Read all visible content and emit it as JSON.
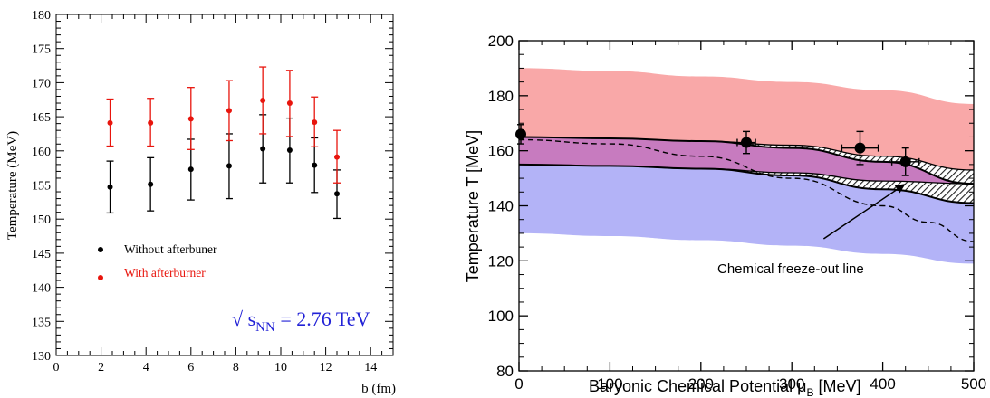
{
  "chart_data": [
    {
      "type": "scatter",
      "xlabel": "b (fm)",
      "ylabel": "Temperature (MeV)",
      "xlim": [
        0,
        15
      ],
      "ylim": [
        130,
        180
      ],
      "x_ticks": [
        "0",
        "2",
        "4",
        "6",
        "8",
        "10",
        "12",
        "14"
      ],
      "y_ticks": [
        "130",
        "135",
        "140",
        "145",
        "150",
        "155",
        "160",
        "165",
        "170",
        "175",
        "180"
      ],
      "series": [
        {
          "name": "Without afterbuner",
          "color": "#000000",
          "points": [
            {
              "x": 2.4,
              "y": 154.7,
              "ylo": 150.9,
              "yhi": 158.5
            },
            {
              "x": 4.2,
              "y": 155.1,
              "ylo": 151.2,
              "yhi": 159.0
            },
            {
              "x": 6.0,
              "y": 157.3,
              "ylo": 152.8,
              "yhi": 161.7
            },
            {
              "x": 7.7,
              "y": 157.8,
              "ylo": 153.0,
              "yhi": 162.5
            },
            {
              "x": 9.2,
              "y": 160.3,
              "ylo": 155.3,
              "yhi": 165.3
            },
            {
              "x": 10.4,
              "y": 160.1,
              "ylo": 155.3,
              "yhi": 164.8
            },
            {
              "x": 11.5,
              "y": 157.9,
              "ylo": 153.9,
              "yhi": 161.9
            },
            {
              "x": 12.5,
              "y": 153.7,
              "ylo": 150.1,
              "yhi": 157.2
            }
          ]
        },
        {
          "name": "With afterburner",
          "color": "#e8150d",
          "points": [
            {
              "x": 2.4,
              "y": 164.1,
              "ylo": 160.7,
              "yhi": 167.6
            },
            {
              "x": 4.2,
              "y": 164.1,
              "ylo": 160.7,
              "yhi": 167.7
            },
            {
              "x": 6.0,
              "y": 164.7,
              "ylo": 160.2,
              "yhi": 169.3
            },
            {
              "x": 7.7,
              "y": 165.9,
              "ylo": 161.5,
              "yhi": 170.3
            },
            {
              "x": 9.2,
              "y": 167.4,
              "ylo": 162.5,
              "yhi": 172.3
            },
            {
              "x": 10.4,
              "y": 167.0,
              "ylo": 162.1,
              "yhi": 171.8
            },
            {
              "x": 11.5,
              "y": 164.2,
              "ylo": 160.6,
              "yhi": 167.9
            },
            {
              "x": 12.5,
              "y": 159.1,
              "ylo": 155.3,
              "yhi": 163.0
            }
          ]
        }
      ],
      "annotation": {
        "prefix": "√ s",
        "subscript": "NN",
        "suffix": " = 2.76 TeV",
        "color": "#2121d6"
      },
      "legend_position": "lower-left"
    },
    {
      "type": "area",
      "xlabel": "Baryonic Chemical Potential  μ",
      "xlabel_subscript": "B",
      "xlabel_unit": " [MeV]",
      "ylabel": "Temperature T [MeV]",
      "xlim": [
        0,
        500
      ],
      "ylim": [
        80,
        200
      ],
      "x_ticks": [
        "0",
        "100",
        "200",
        "300",
        "400",
        "500"
      ],
      "y_ticks": [
        "80",
        "100",
        "120",
        "140",
        "160",
        "180",
        "200"
      ],
      "bands": [
        {
          "color": "#f9a8a8",
          "x": [
            0,
            100,
            200,
            300,
            400,
            500
          ],
          "upper": [
            190,
            189,
            187,
            185,
            182,
            177
          ],
          "lower": [
            155,
            154.5,
            153.5,
            152,
            149,
            148
          ]
        },
        {
          "color": "#b3b3f7",
          "x": [
            0,
            100,
            200,
            300,
            400,
            500
          ],
          "upper": [
            155,
            154.5,
            153.5,
            152,
            149,
            148
          ],
          "lower": [
            130,
            129,
            127.5,
            125.5,
            122.5,
            119
          ]
        },
        {
          "color": "#c77bbf",
          "x": [
            0,
            100,
            200,
            300,
            400,
            500
          ],
          "upper": [
            165,
            164.5,
            163.5,
            162,
            158,
            153
          ],
          "lower": [
            155,
            154.5,
            153.5,
            152,
            149,
            148
          ]
        }
      ],
      "boundary_curves": [
        {
          "x": [
            0,
            100,
            200,
            300,
            400,
            500
          ],
          "y": [
            165,
            164.5,
            163.5,
            161,
            156,
            148
          ]
        },
        {
          "x": [
            0,
            100,
            200,
            300,
            400,
            500
          ],
          "y": [
            155,
            154.5,
            153.5,
            151,
            146,
            141
          ]
        }
      ],
      "hatched_bands": [
        {
          "x": [
            0,
            100,
            200,
            300,
            400,
            500
          ],
          "upper": [
            165,
            164.5,
            163.5,
            162,
            158,
            153
          ],
          "lower": [
            165,
            164.5,
            163.5,
            161,
            156,
            148
          ]
        },
        {
          "x": [
            0,
            100,
            200,
            300,
            400,
            500
          ],
          "upper": [
            155,
            154.5,
            153.5,
            152,
            149,
            148
          ],
          "lower": [
            155,
            154.5,
            153.5,
            151,
            146,
            141
          ]
        }
      ],
      "freeze_out_line": {
        "x": [
          0,
          100,
          200,
          300,
          400,
          450,
          500
        ],
        "y": [
          164,
          162.5,
          158,
          150,
          140,
          134,
          127
        ]
      },
      "data_points": [
        {
          "x": 2,
          "y": 166,
          "xerr": 4,
          "yerr": 3.5
        },
        {
          "x": 250,
          "y": 163,
          "xerr": 10,
          "yerr": 4
        },
        {
          "x": 375,
          "y": 161,
          "xerr": 20,
          "yerr": 6
        },
        {
          "x": 425,
          "y": 156,
          "xerr": 15,
          "yerr": 5
        }
      ],
      "annotation": {
        "text": "Chemical freeze-out line",
        "arrow_from": [
          335,
          128
        ],
        "arrow_to": [
          425,
          148
        ]
      }
    }
  ]
}
